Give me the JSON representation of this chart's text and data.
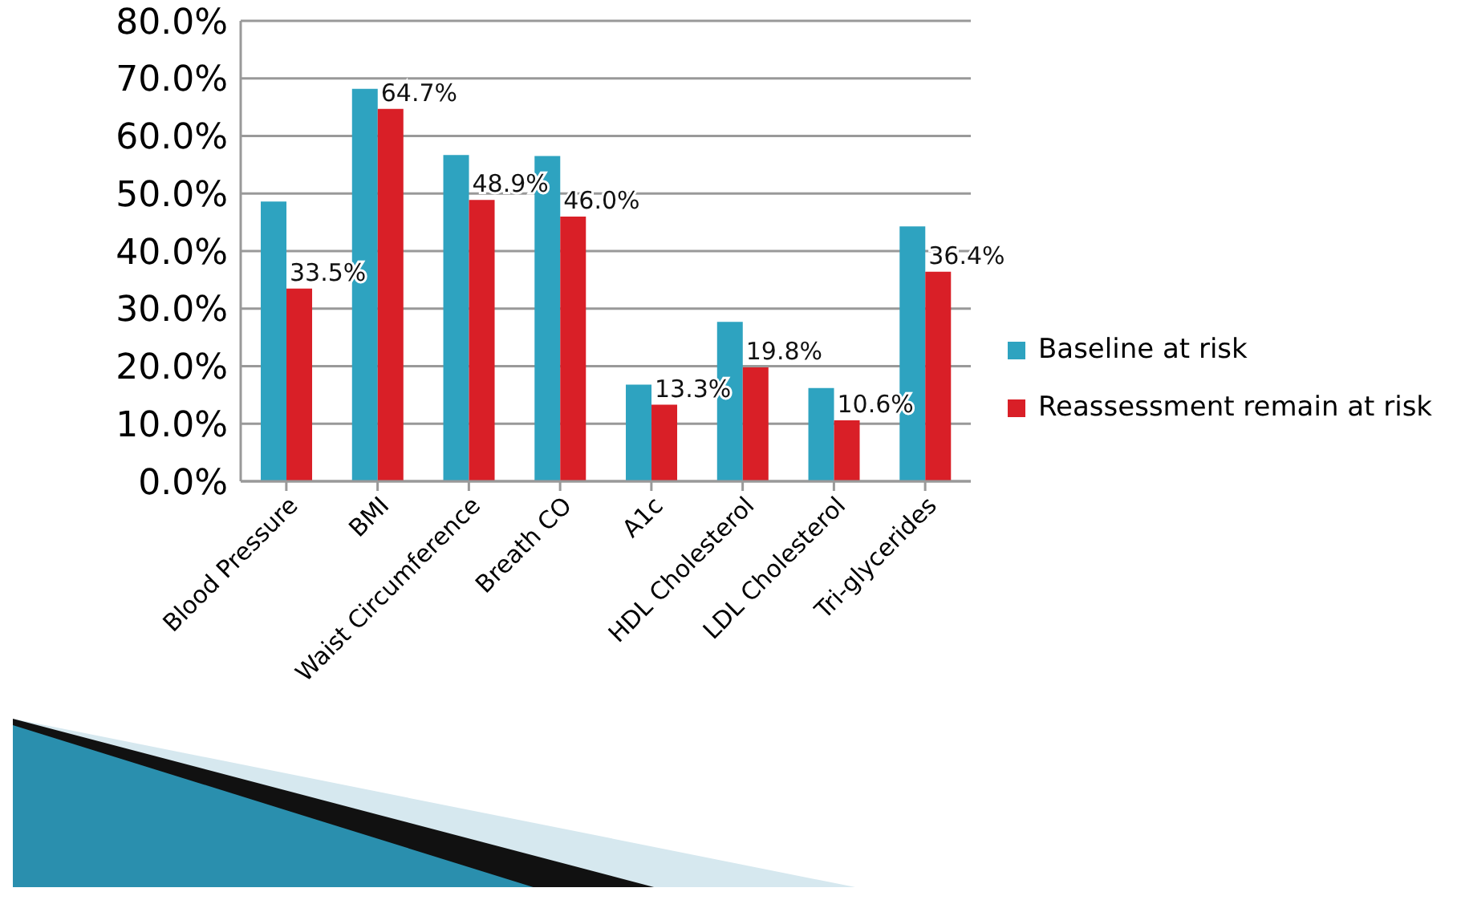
{
  "chart_data": {
    "type": "bar",
    "categories": [
      "Blood Pressure",
      "BMI",
      "Waist Circumference",
      "Breath CO",
      "A1c",
      "HDL Cholesterol",
      "LDL Cholesterol",
      "Tri-glycerides"
    ],
    "series": [
      {
        "name": "Baseline at risk",
        "color": "#2ea3c0",
        "values": [
          48.6,
          68.2,
          56.7,
          56.5,
          16.8,
          27.7,
          16.2,
          44.3
        ]
      },
      {
        "name": "Reassessment remain at risk",
        "color": "#d91f27",
        "values": [
          33.5,
          64.7,
          48.9,
          46.0,
          13.3,
          19.8,
          10.6,
          36.4
        ],
        "value_labels": [
          "33.5%",
          "64.7%",
          "48.9%",
          "46.0%",
          "13.3%",
          "19.8%",
          "10.6%",
          "36.4%"
        ]
      }
    ],
    "ylim": [
      0,
      80
    ],
    "yticks": [
      {
        "value": 0,
        "label": "0.0%"
      },
      {
        "value": 10,
        "label": "10.0%"
      },
      {
        "value": 20,
        "label": "20.0%"
      },
      {
        "value": 30,
        "label": "30.0%"
      },
      {
        "value": 40,
        "label": "40.0%"
      },
      {
        "value": 50,
        "label": "50.0%"
      },
      {
        "value": 60,
        "label": "60.0%"
      },
      {
        "value": 70,
        "label": "70.0%"
      },
      {
        "value": 80,
        "label": "80.0%"
      }
    ],
    "grid": "y",
    "legend": "right"
  }
}
